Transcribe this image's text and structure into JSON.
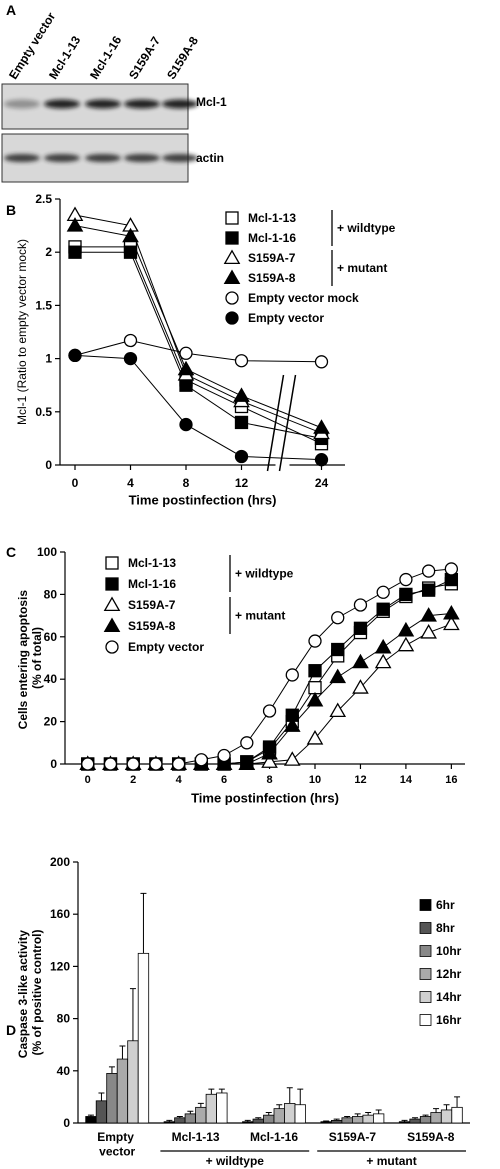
{
  "blot": {
    "panel_label": "A",
    "lanes": [
      "Empty vector",
      "Mcl-1-13",
      "Mcl-1-16",
      "S159A-7",
      "S159A-8"
    ],
    "bands": [
      "Mcl-1",
      "actin"
    ]
  },
  "chart_data": [
    {
      "type": "line",
      "panel_label": "B",
      "xlabel": "Time postinfection (hrs)",
      "ylabel": "Mcl-1 (Ratio to empty vector mock)",
      "categories": [
        "0",
        "4",
        "8",
        "12",
        "24"
      ],
      "axis_break": true,
      "ylim": [
        0,
        2.5
      ],
      "yticks": [
        0,
        0.5,
        1,
        1.5,
        2,
        2.5
      ],
      "series": [
        {
          "name": "Mcl-1-13",
          "marker": "square",
          "filled": false,
          "color": "#000000",
          "values": [
            2.05,
            2.05,
            0.8,
            0.55,
            0.2
          ]
        },
        {
          "name": "Mcl-1-16",
          "marker": "square",
          "filled": true,
          "color": "#000000",
          "values": [
            2.0,
            2.0,
            0.75,
            0.4,
            0.25
          ]
        },
        {
          "name": "S159A-7",
          "marker": "triangle",
          "filled": false,
          "color": "#000000",
          "values": [
            2.35,
            2.25,
            0.85,
            0.6,
            0.3
          ]
        },
        {
          "name": "S159A-8",
          "marker": "triangle",
          "filled": true,
          "color": "#000000",
          "values": [
            2.25,
            2.15,
            0.9,
            0.65,
            0.35
          ]
        },
        {
          "name": "Empty vector mock",
          "marker": "circle",
          "filled": false,
          "color": "#000000",
          "values": [
            1.03,
            1.17,
            1.05,
            0.98,
            0.97
          ]
        },
        {
          "name": "Empty vector",
          "marker": "circle",
          "filled": true,
          "color": "#000000",
          "values": [
            1.03,
            1.0,
            0.38,
            0.08,
            0.05
          ]
        }
      ],
      "legend_groups": [
        {
          "label": "+ wildtype",
          "members": [
            "Mcl-1-13",
            "Mcl-1-16"
          ]
        },
        {
          "label": "+ mutant",
          "members": [
            "S159A-7",
            "S159A-8"
          ]
        }
      ]
    },
    {
      "type": "line",
      "panel_label": "C",
      "xlabel": "Time postinfection (hrs)",
      "ylabel": "Cells entering apoptosis (% of total)",
      "x": [
        0,
        1,
        2,
        3,
        4,
        5,
        6,
        7,
        8,
        9,
        10,
        11,
        12,
        13,
        14,
        15,
        16
      ],
      "xlim": [
        -1,
        16.6
      ],
      "xticks": [
        0,
        2,
        4,
        6,
        8,
        10,
        12,
        14,
        16
      ],
      "ylim": [
        0,
        100
      ],
      "yticks": [
        0,
        20,
        40,
        60,
        80,
        100
      ],
      "series": [
        {
          "name": "Mcl-1-13",
          "marker": "square",
          "filled": false,
          "color": "#000000",
          "values": [
            0,
            0,
            0,
            0,
            0,
            0,
            0,
            1,
            7,
            20,
            36,
            51,
            62,
            72,
            79,
            83,
            85
          ]
        },
        {
          "name": "Mcl-1-16",
          "marker": "square",
          "filled": true,
          "color": "#000000",
          "values": [
            0,
            0,
            0,
            0,
            0,
            0,
            0,
            1,
            8,
            23,
            44,
            54,
            64,
            73,
            80,
            82,
            87
          ]
        },
        {
          "name": "S159A-7",
          "marker": "triangle",
          "filled": false,
          "color": "#000000",
          "values": [
            0,
            0,
            0,
            0,
            0,
            0,
            0,
            0,
            1,
            2,
            12,
            25,
            36,
            48,
            56,
            62,
            66
          ]
        },
        {
          "name": "S159A-8",
          "marker": "triangle",
          "filled": true,
          "color": "#000000",
          "values": [
            0,
            0,
            0,
            0,
            0,
            0,
            0,
            0,
            5,
            18,
            30,
            41,
            48,
            55,
            63,
            70,
            71
          ]
        },
        {
          "name": "Empty vector",
          "marker": "circle",
          "filled": false,
          "color": "#000000",
          "values": [
            0,
            0,
            0,
            0,
            0,
            2,
            4,
            10,
            25,
            42,
            58,
            69,
            75,
            81,
            87,
            91,
            92
          ]
        }
      ],
      "legend_groups": [
        {
          "label": "+ wildtype",
          "members": [
            "Mcl-1-13",
            "Mcl-1-16"
          ]
        },
        {
          "label": "+ mutant",
          "members": [
            "S159A-7",
            "S159A-8"
          ]
        }
      ]
    },
    {
      "type": "bar",
      "panel_label": "D",
      "ylabel": "Caspase 3-like activity (% of positive control)",
      "categories": [
        "Empty vector",
        "Mcl-1-13",
        "Mcl-1-16",
        "S159A-7",
        "S159A-8"
      ],
      "ylim": [
        0,
        200
      ],
      "yticks": [
        0,
        40,
        80,
        120,
        160,
        200
      ],
      "series": [
        {
          "name": "6hr",
          "color": "#000000",
          "values": [
            5,
            1,
            1,
            1,
            1
          ],
          "errors": [
            1,
            1,
            1,
            0.5,
            1
          ]
        },
        {
          "name": "8hr",
          "color": "#555555",
          "values": [
            17,
            4,
            3,
            2,
            3
          ],
          "errors": [
            6,
            1,
            1,
            1,
            1
          ]
        },
        {
          "name": "10hr",
          "color": "#888888",
          "values": [
            38,
            7,
            6,
            4,
            5
          ],
          "errors": [
            5,
            2,
            2,
            1,
            1
          ]
        },
        {
          "name": "12hr",
          "color": "#aaaaaa",
          "values": [
            49,
            12,
            11,
            5,
            8
          ],
          "errors": [
            10,
            3,
            3,
            2,
            3
          ]
        },
        {
          "name": "14hr",
          "color": "#d0d0d0",
          "values": [
            63,
            22,
            15,
            6,
            10
          ],
          "errors": [
            40,
            4,
            12,
            2,
            4
          ]
        },
        {
          "name": "16hr",
          "color": "#ffffff",
          "values": [
            130,
            23,
            14,
            7,
            12
          ],
          "errors": [
            46,
            3,
            12,
            3,
            8
          ]
        }
      ],
      "category_groups": [
        {
          "label": "+ wildtype",
          "members": [
            "Mcl-1-13",
            "Mcl-1-16"
          ]
        },
        {
          "label": "+ mutant",
          "members": [
            "S159A-7",
            "S159A-8"
          ]
        }
      ]
    }
  ]
}
